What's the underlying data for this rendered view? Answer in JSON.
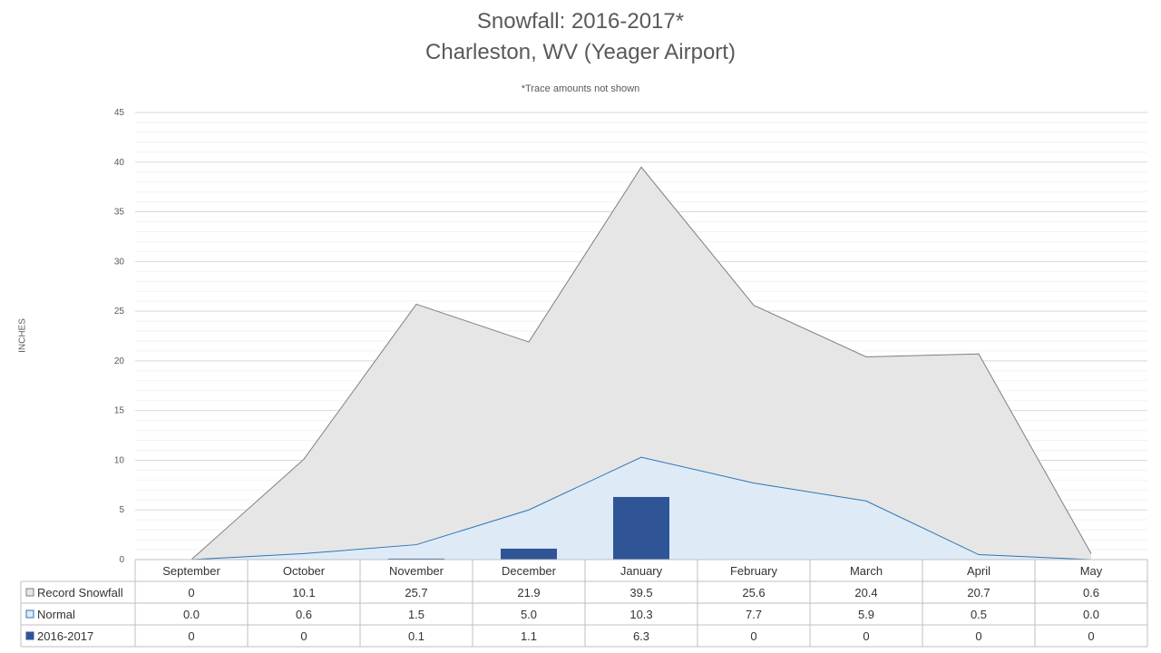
{
  "chart_data": {
    "type": "area",
    "title": "Snowfall: 2016-2017*",
    "subtitle": "Charleston, WV (Yeager Airport)",
    "note": "*Trace amounts not shown",
    "ylabel": "INCHES",
    "ylim": [
      0,
      45
    ],
    "yticks": [
      0,
      5,
      10,
      15,
      20,
      25,
      30,
      35,
      40,
      45
    ],
    "grid": true,
    "legend": "data-table",
    "categories": [
      "September",
      "October",
      "November",
      "December",
      "January",
      "February",
      "March",
      "April",
      "May"
    ],
    "series": [
      {
        "name": "Record Snowfall",
        "kind": "area",
        "color": "#e7e6e6",
        "line_color": "#7f7f7f",
        "values": [
          0,
          10.1,
          25.7,
          21.9,
          39.5,
          25.6,
          20.4,
          20.7,
          0.6
        ],
        "labels": [
          "0",
          "10.1",
          "25.7",
          "21.9",
          "39.5",
          "25.6",
          "20.4",
          "20.7",
          "0.6"
        ]
      },
      {
        "name": "Normal",
        "kind": "area",
        "color": "#deebf7",
        "line_color": "#2e75b6",
        "values": [
          0.0,
          0.6,
          1.5,
          5.0,
          10.3,
          7.7,
          5.9,
          0.5,
          0.0
        ],
        "labels": [
          "0.0",
          "0.6",
          "1.5",
          "5.0",
          "10.3",
          "7.7",
          "5.9",
          "0.5",
          "0.0"
        ]
      },
      {
        "name": "2016-2017",
        "kind": "bar",
        "color": "#2f5597",
        "values": [
          0,
          0,
          0.1,
          1.1,
          6.3,
          0,
          0,
          0,
          0
        ],
        "labels": [
          "0",
          "0",
          "0.1",
          "1.1",
          "6.3",
          "0",
          "0",
          "0",
          "0"
        ]
      }
    ]
  }
}
